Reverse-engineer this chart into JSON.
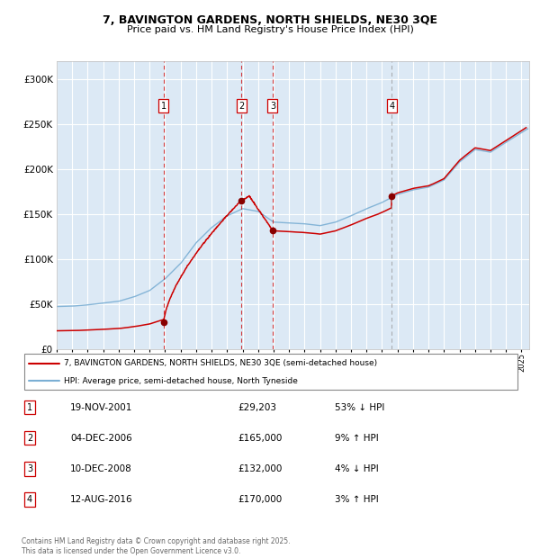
{
  "title": "7, BAVINGTON GARDENS, NORTH SHIELDS, NE30 3QE",
  "subtitle": "Price paid vs. HM Land Registry's House Price Index (HPI)",
  "ylim": [
    0,
    320000
  ],
  "yticks": [
    0,
    50000,
    100000,
    150000,
    200000,
    250000,
    300000
  ],
  "ytick_labels": [
    "£0",
    "£50K",
    "£100K",
    "£150K",
    "£200K",
    "£250K",
    "£300K"
  ],
  "plot_bg_color": "#dce9f5",
  "grid_color": "#ffffff",
  "red_line_color": "#cc0000",
  "blue_line_color": "#7bafd4",
  "transaction_dot_color": "#880000",
  "transactions": [
    {
      "num": 1,
      "date_x": 2001.9,
      "price": 29203,
      "vline_color": "#cc0000"
    },
    {
      "num": 2,
      "date_x": 2006.92,
      "price": 165000,
      "vline_color": "#cc0000"
    },
    {
      "num": 3,
      "date_x": 2008.94,
      "price": 132000,
      "vline_color": "#cc0000"
    },
    {
      "num": 4,
      "date_x": 2016.62,
      "price": 170000,
      "vline_color": "#999999"
    }
  ],
  "legend_red_label": "7, BAVINGTON GARDENS, NORTH SHIELDS, NE30 3QE (semi-detached house)",
  "legend_blue_label": "HPI: Average price, semi-detached house, North Tyneside",
  "table_rows": [
    {
      "num": "1",
      "date": "19-NOV-2001",
      "price": "£29,203",
      "change": "53% ↓ HPI"
    },
    {
      "num": "2",
      "date": "04-DEC-2006",
      "price": "£165,000",
      "change": "9% ↑ HPI"
    },
    {
      "num": "3",
      "date": "10-DEC-2008",
      "price": "£132,000",
      "change": "4% ↓ HPI"
    },
    {
      "num": "4",
      "date": "12-AUG-2016",
      "price": "£170,000",
      "change": "3% ↑ HPI"
    }
  ],
  "footer": "Contains HM Land Registry data © Crown copyright and database right 2025.\nThis data is licensed under the Open Government Licence v3.0.",
  "xmin": 1995,
  "xmax": 2025.5
}
